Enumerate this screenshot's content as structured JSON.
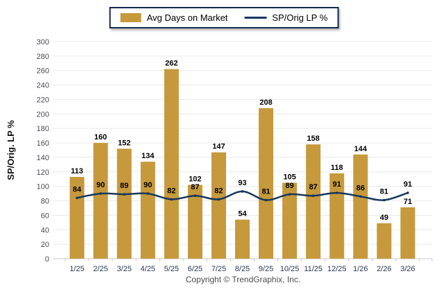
{
  "legend": {
    "items": [
      {
        "label": "Avg Days on Market",
        "swatch": "bar-swatch",
        "color": "#C5993C"
      },
      {
        "label": "SP/Orig LP %",
        "swatch": "line-swatch",
        "color": "#17375C"
      }
    ]
  },
  "chart_data": {
    "type": "bar",
    "categories": [
      "1/25",
      "2/25",
      "3/25",
      "4/25",
      "5/25",
      "6/25",
      "7/25",
      "8/25",
      "9/25",
      "10/25",
      "11/25",
      "12/25",
      "1/26",
      "2/26",
      "3/26"
    ],
    "series": [
      {
        "name": "Avg Days on Market",
        "type": "bar",
        "color": "#C5993C",
        "values": [
          113,
          160,
          152,
          134,
          262,
          102,
          147,
          54,
          208,
          105,
          158,
          118,
          144,
          49,
          71
        ]
      },
      {
        "name": "SP/Orig LP %",
        "type": "line",
        "color": "#17375C",
        "values": [
          84,
          90,
          89,
          90,
          82,
          87,
          82,
          93,
          81,
          89,
          87,
          91,
          86,
          81,
          91
        ]
      }
    ],
    "title": "",
    "xlabel": "",
    "ylabel": "SP/Orig. LP %",
    "ylim": [
      0,
      300
    ],
    "ytick_step": 20,
    "grid": true,
    "legend_position": "top-center",
    "data_labels": true
  },
  "footer": {
    "copyright": "Copyright © TrendGraphix, Inc."
  },
  "colors": {
    "bar": "#C5993C",
    "line": "#17375C",
    "grid": "#EAEAED",
    "axis": "#C9C9CE",
    "y_tick_label": "#4A4A55",
    "x_tick_label": "#2B3A55",
    "data_label": "#000000",
    "ylabel_color": "#111111",
    "copyright": "#4D4D4D",
    "legend_border": "#10284A",
    "background": "#FFFFFF"
  }
}
